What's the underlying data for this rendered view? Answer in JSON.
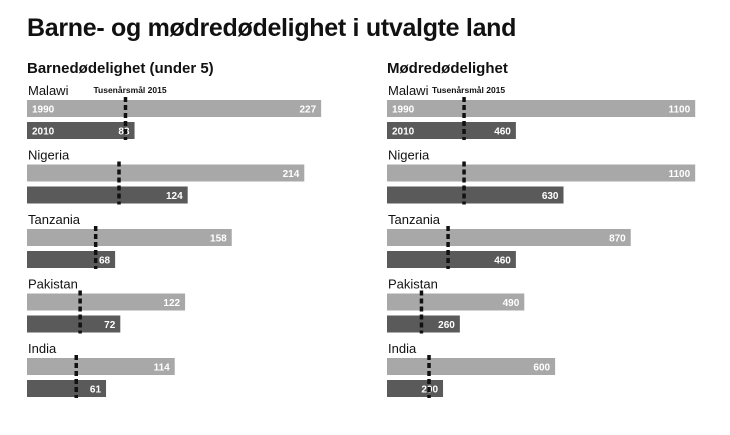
{
  "title": "Barne- og mødredødelighet i utvalgte land",
  "goal_label": "Tusenårsmål 2015",
  "colors": {
    "bar_1990": "#a8a8a8",
    "bar_2010": "#5a5a5a",
    "goal_line": "#111111"
  },
  "chart_data": [
    {
      "type": "bar",
      "title": "Barnedødelighet (under 5)",
      "orientation": "horizontal",
      "categories": [
        "Malawi",
        "Nigeria",
        "Tanzania",
        "Pakistan",
        "India"
      ],
      "year_labels": [
        "1990",
        "2010"
      ],
      "xlim": [
        0,
        240
      ],
      "series": [
        {
          "name": "1990",
          "values": [
            227,
            214,
            158,
            122,
            114
          ]
        },
        {
          "name": "2010",
          "values": [
            83,
            124,
            68,
            72,
            61
          ]
        }
      ],
      "goal_2015": [
        76,
        71,
        53,
        41,
        38
      ]
    },
    {
      "type": "bar",
      "title": "Mødredødelighet",
      "orientation": "horizontal",
      "categories": [
        "Malawi",
        "Nigeria",
        "Tanzania",
        "Pakistan",
        "India"
      ],
      "year_labels": [
        "1990",
        "2010"
      ],
      "xlim": [
        0,
        1110
      ],
      "series": [
        {
          "name": "1990",
          "values": [
            1100,
            1100,
            870,
            490,
            600
          ]
        },
        {
          "name": "2010",
          "values": [
            460,
            630,
            460,
            260,
            200
          ]
        }
      ],
      "goal_2015": [
        275,
        275,
        218,
        123,
        150
      ]
    }
  ]
}
